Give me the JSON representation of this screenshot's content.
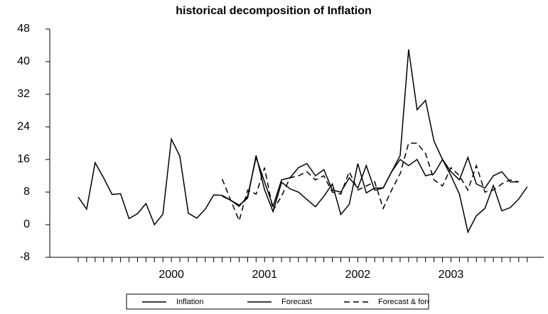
{
  "chart_data": {
    "type": "line",
    "title": "historical decomposition of Inflation",
    "categories": [
      null,
      null,
      null,
      null,
      null,
      null,
      null,
      null,
      null,
      null,
      null,
      "2000",
      null,
      null,
      null,
      null,
      null,
      null,
      null,
      null,
      null,
      null,
      "2001",
      null,
      null,
      null,
      null,
      null,
      null,
      null,
      null,
      null,
      null,
      "2002",
      null,
      null,
      null,
      null,
      null,
      null,
      null,
      null,
      null,
      null,
      "2003",
      null,
      null,
      null,
      null,
      null,
      null,
      null,
      null,
      null
    ],
    "series": [
      {
        "name": "Inflation",
        "color": "#000000",
        "dash": "solid",
        "values": [
          6.8,
          3.8,
          15.2,
          11.5,
          7.4,
          7.6,
          1.5,
          2.7,
          5.2,
          0,
          2.6,
          21,
          16.8,
          2.8,
          1.6,
          3.8,
          7.3,
          7.2,
          6.0,
          4.8,
          6.5,
          17,
          8.6,
          3.2,
          10.4,
          8.8,
          8.0,
          6.2,
          4.4,
          7.0,
          10.0,
          2.5,
          5.0,
          15.0,
          7.8,
          9,
          9,
          13,
          17,
          43,
          28.2,
          30.5,
          20.5,
          16,
          12,
          7.5,
          -1.8,
          2.2,
          4.0,
          9.6,
          3.4,
          4.2,
          6.3,
          9.3
        ]
      },
      {
        "name": "Forecast",
        "color": "#000000",
        "dash": "solid",
        "values": [
          null,
          null,
          null,
          null,
          null,
          null,
          null,
          null,
          null,
          null,
          null,
          null,
          null,
          null,
          null,
          null,
          null,
          7.0,
          6.0,
          4.5,
          7.0,
          16.5,
          10.5,
          4.5,
          11,
          11.5,
          14,
          15,
          12,
          13.5,
          8.5,
          8,
          11.5,
          9,
          14.5,
          8.5,
          9,
          13,
          16,
          14.5,
          16,
          12,
          12.5,
          16,
          13,
          11,
          16.5,
          10,
          9,
          12,
          13,
          10.5,
          10.5,
          null
        ]
      },
      {
        "name": "Forecast & forei",
        "color": "#000000",
        "dash": "dashed",
        "values": [
          null,
          null,
          null,
          null,
          null,
          null,
          null,
          null,
          null,
          null,
          null,
          null,
          null,
          null,
          null,
          null,
          null,
          11.2,
          6,
          1,
          8.5,
          7.5,
          14,
          3.5,
          7,
          11.5,
          12,
          13,
          11,
          12,
          8,
          7.5,
          13,
          8.5,
          9.5,
          10.5,
          4,
          8.5,
          12.5,
          20,
          20,
          17.5,
          11,
          9.5,
          14,
          12,
          8.5,
          14.5,
          8,
          8.5,
          10,
          11,
          10.5,
          null
        ]
      }
    ],
    "ylim": [
      -8,
      48
    ],
    "yticks": [
      -8,
      0,
      8,
      16,
      24,
      32,
      40,
      48
    ]
  }
}
